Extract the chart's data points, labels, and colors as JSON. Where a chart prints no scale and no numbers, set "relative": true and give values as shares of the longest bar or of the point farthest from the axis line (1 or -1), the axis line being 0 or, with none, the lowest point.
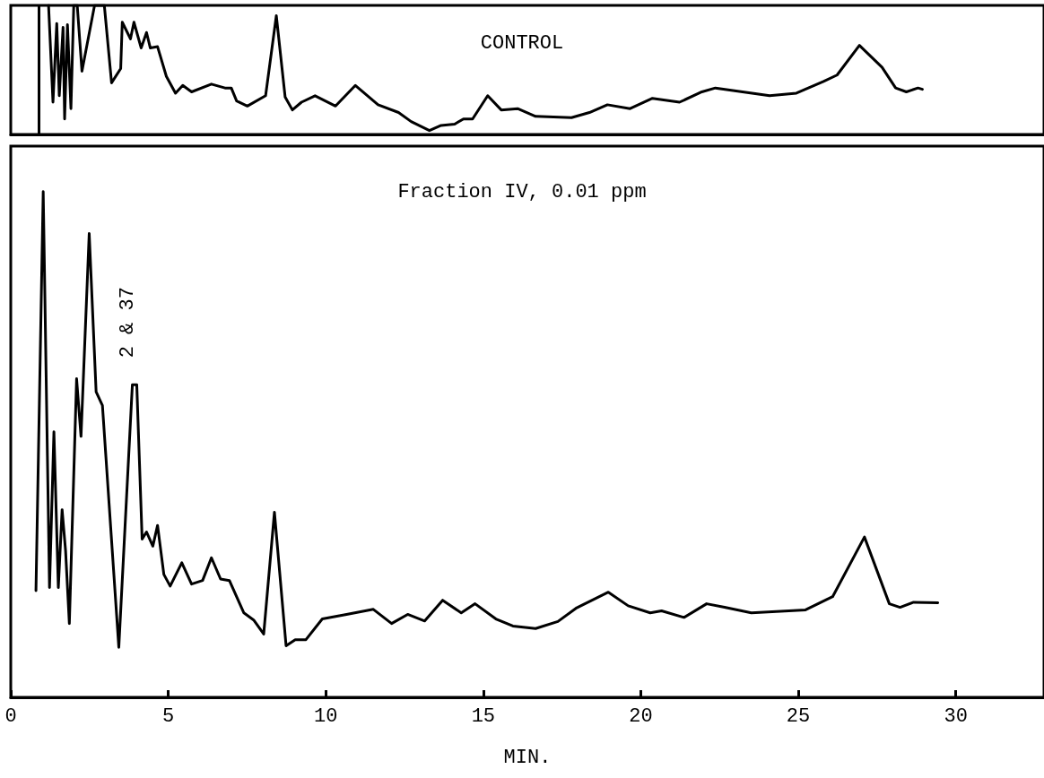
{
  "chart_data": [
    {
      "type": "line",
      "title": "CONTROL",
      "relative": true,
      "xlim": [
        0,
        32.8
      ],
      "xticks": [
        0,
        5,
        10,
        15,
        20,
        25,
        30
      ],
      "tick_labels": false,
      "ref_lines": [
        {
          "axis": "x",
          "value": 0.9
        }
      ],
      "series": [
        {
          "color": "#000000",
          "x": [
            1.2,
            1.34,
            1.46,
            1.54,
            1.66,
            1.71,
            1.8,
            1.91,
            2.0,
            2.11,
            2.26,
            2.66,
            2.97,
            3.2,
            3.49,
            3.54,
            3.8,
            3.91,
            4.14,
            4.31,
            4.43,
            4.66,
            4.94,
            5.23,
            5.46,
            5.74,
            6.37,
            6.8,
            7.0,
            7.17,
            7.51,
            8.09,
            8.43,
            8.71,
            8.94,
            9.23,
            9.66,
            10.31,
            10.94,
            11.66,
            12.31,
            12.71,
            13.29,
            13.66,
            14.09,
            14.37,
            14.66,
            15.14,
            15.57,
            16.09,
            16.66,
            17.8,
            18.37,
            18.94,
            19.66,
            20.37,
            21.23,
            21.94,
            22.37,
            23.23,
            24.09,
            24.94,
            25.8,
            26.23,
            26.94,
            27.66,
            28.09,
            28.43,
            28.8,
            28.94
          ],
          "values": [
            1,
            0.25,
            0.86,
            0.3,
            0.83,
            0.12,
            0.85,
            0.2,
            1,
            1,
            0.49,
            1,
            1,
            0.4,
            0.51,
            0.87,
            0.74,
            0.87,
            0.67,
            0.79,
            0.67,
            0.68,
            0.45,
            0.32,
            0.38,
            0.33,
            0.39,
            0.36,
            0.36,
            0.26,
            0.22,
            0.3,
            0.92,
            0.29,
            0.19,
            0.25,
            0.3,
            0.22,
            0.38,
            0.23,
            0.17,
            0.1,
            0.03,
            0.07,
            0.08,
            0.12,
            0.12,
            0.3,
            0.19,
            0.2,
            0.14,
            0.13,
            0.17,
            0.23,
            0.2,
            0.28,
            0.25,
            0.33,
            0.36,
            0.33,
            0.3,
            0.32,
            0.41,
            0.46,
            0.69,
            0.52,
            0.36,
            0.33,
            0.36,
            0.35
          ]
        }
      ]
    },
    {
      "type": "line",
      "title": "Fraction IV, 0.01 ppm",
      "xlabel": "MIN.",
      "relative": true,
      "xlim": [
        0,
        32.8
      ],
      "xticks": [
        0,
        5,
        10,
        15,
        20,
        25,
        30
      ],
      "tick_labels": "x",
      "annotations": [
        {
          "text": "2 & 37",
          "x": 3.93,
          "y": 0.618
        }
      ],
      "series": [
        {
          "color": "#000000",
          "x": [
            0.8,
            1.03,
            1.23,
            1.37,
            1.51,
            1.63,
            1.74,
            1.86,
            2.09,
            2.23,
            2.49,
            2.71,
            2.91,
            3.43,
            3.86,
            4.0,
            4.17,
            4.31,
            4.51,
            4.66,
            4.86,
            5.06,
            5.43,
            5.74,
            6.09,
            6.37,
            6.66,
            6.94,
            7.4,
            7.71,
            8.03,
            8.37,
            8.74,
            9.03,
            9.37,
            9.89,
            10.66,
            11.51,
            12.09,
            12.6,
            13.14,
            13.71,
            14.3,
            14.74,
            15.4,
            15.94,
            16.66,
            17.37,
            17.94,
            18.97,
            19.6,
            20.3,
            20.66,
            21.37,
            22.09,
            22.66,
            23.51,
            25.23,
            26.09,
            27.1,
            27.89,
            28.23,
            28.66,
            29.43
          ],
          "values": [
            0.211,
            1,
            0.217,
            0.525,
            0.217,
            0.371,
            0.29,
            0.146,
            0.63,
            0.516,
            0.917,
            0.604,
            0.577,
            0.099,
            0.618,
            0.618,
            0.313,
            0.327,
            0.299,
            0.34,
            0.243,
            0.22,
            0.266,
            0.224,
            0.231,
            0.276,
            0.234,
            0.231,
            0.167,
            0.153,
            0.125,
            0.366,
            0.102,
            0.114,
            0.114,
            0.155,
            0.164,
            0.174,
            0.146,
            0.164,
            0.151,
            0.192,
            0.167,
            0.185,
            0.155,
            0.141,
            0.136,
            0.15,
            0.176,
            0.208,
            0.181,
            0.167,
            0.171,
            0.158,
            0.185,
            0.178,
            0.167,
            0.173,
            0.199,
            0.317,
            0.185,
            0.178,
            0.188,
            0.187
          ]
        }
      ]
    }
  ]
}
